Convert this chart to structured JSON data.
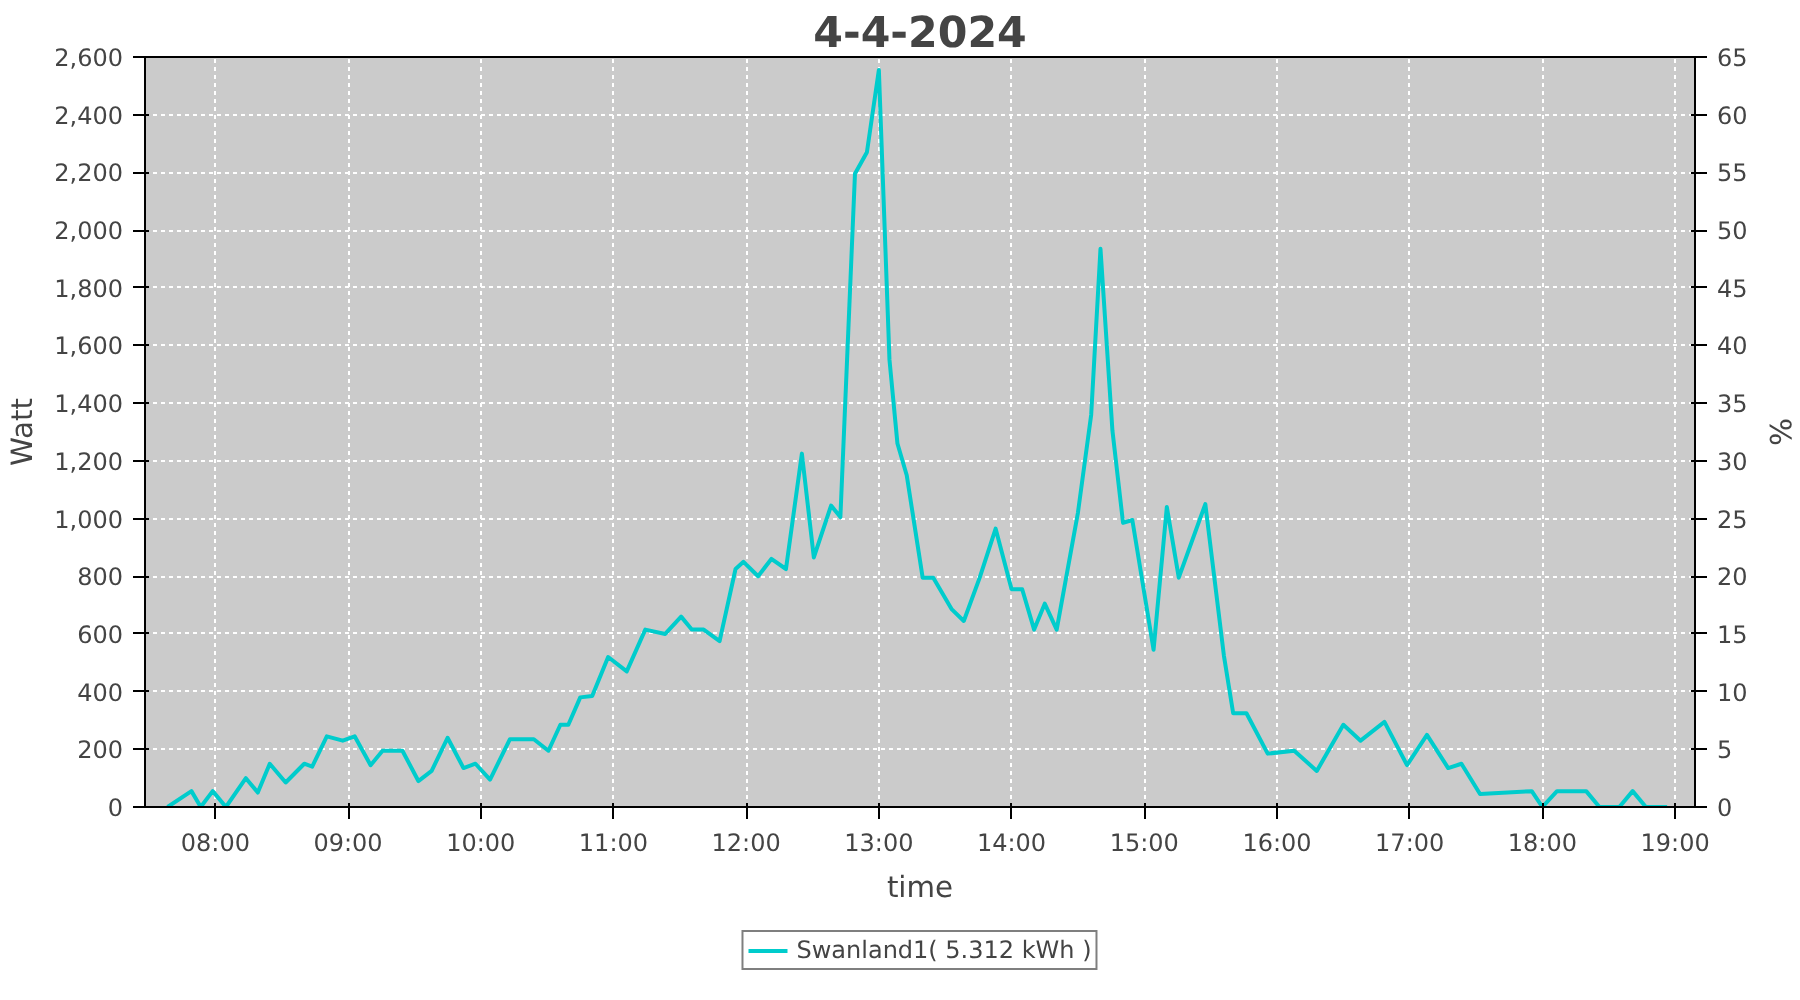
{
  "chart_data": {
    "type": "line",
    "title": "4-4-2024",
    "xlabel": "time",
    "ylabel": "Watt",
    "y2label": "%",
    "x": [
      7.64,
      7.82,
      7.89,
      7.98,
      8.08,
      8.23,
      8.32,
      8.41,
      8.53,
      8.67,
      8.73,
      8.84,
      8.96,
      9.05,
      9.17,
      9.26,
      9.41,
      9.53,
      9.63,
      9.75,
      9.87,
      9.96,
      10.07,
      10.22,
      10.4,
      10.51,
      10.6,
      10.66,
      10.75,
      10.84,
      10.96,
      11.1,
      11.24,
      11.39,
      11.51,
      11.59,
      11.68,
      11.8,
      11.92,
      11.98,
      12.09,
      12.19,
      12.3,
      12.42,
      12.51,
      12.64,
      12.71,
      12.82,
      12.91,
      13.0,
      13.08,
      13.14,
      13.21,
      13.33,
      13.41,
      13.55,
      13.64,
      13.76,
      13.88,
      14.0,
      14.08,
      14.17,
      14.25,
      14.34,
      14.5,
      14.6,
      14.67,
      14.76,
      14.84,
      14.91,
      15.07,
      15.17,
      15.26,
      15.46,
      15.6,
      15.67,
      15.77,
      15.93,
      16.13,
      16.3,
      16.5,
      16.63,
      16.81,
      16.98,
      17.13,
      17.29,
      17.39,
      17.53,
      17.92,
      18.0,
      18.11,
      18.33,
      18.43,
      18.58,
      18.68,
      18.78,
      18.94
    ],
    "series": [
      {
        "name": "Swanland1( 5.312 kWh )",
        "color": "#00cccc",
        "values": [
          0,
          55,
          0,
          55,
          0,
          100,
          50,
          150,
          85,
          150,
          140,
          245,
          230,
          245,
          145,
          195,
          195,
          90,
          125,
          240,
          135,
          150,
          95,
          235,
          235,
          195,
          285,
          285,
          380,
          385,
          520,
          470,
          615,
          600,
          660,
          615,
          615,
          575,
          825,
          850,
          800,
          860,
          825,
          1225,
          865,
          1045,
          1005,
          2195,
          2270,
          2555,
          1550,
          1260,
          1150,
          795,
          795,
          685,
          645,
          795,
          965,
          755,
          755,
          615,
          705,
          615,
          1020,
          1360,
          1935,
          1305,
          985,
          995,
          545,
          1040,
          795,
          1050,
          525,
          325,
          325,
          185,
          195,
          125,
          285,
          230,
          295,
          145,
          250,
          135,
          150,
          45,
          55,
          0,
          55,
          55,
          0,
          0,
          55,
          0,
          0
        ]
      }
    ],
    "xlim": [
      7.47,
      19.15
    ],
    "xticks": [
      {
        "value": 8,
        "label": "08:00"
      },
      {
        "value": 9,
        "label": "09:00"
      },
      {
        "value": 10,
        "label": "10:00"
      },
      {
        "value": 11,
        "label": "11:00"
      },
      {
        "value": 12,
        "label": "12:00"
      },
      {
        "value": 13,
        "label": "13:00"
      },
      {
        "value": 14,
        "label": "14:00"
      },
      {
        "value": 15,
        "label": "15:00"
      },
      {
        "value": 16,
        "label": "16:00"
      },
      {
        "value": 17,
        "label": "17:00"
      },
      {
        "value": 18,
        "label": "18:00"
      },
      {
        "value": 19,
        "label": "19:00"
      }
    ],
    "ylim": [
      0,
      2600
    ],
    "yticks": [
      0,
      200,
      400,
      600,
      800,
      {
        "value": 1000,
        "label": "1,000"
      },
      {
        "value": 1200,
        "label": "1,200"
      },
      {
        "value": 1400,
        "label": "1,400"
      },
      {
        "value": 1600,
        "label": "1,600"
      },
      {
        "value": 1800,
        "label": "1,800"
      },
      {
        "value": 2000,
        "label": "2,000"
      },
      {
        "value": 2200,
        "label": "2,200"
      },
      {
        "value": 2400,
        "label": "2,400"
      },
      {
        "value": 2600,
        "label": "2,600"
      }
    ],
    "y2lim": [
      0,
      65
    ],
    "y2ticks": [
      0,
      5,
      10,
      15,
      20,
      25,
      30,
      35,
      40,
      45,
      50,
      55,
      60,
      65
    ],
    "grid": true,
    "legend": "bottom",
    "marker": "none",
    "line_style": "solid"
  }
}
